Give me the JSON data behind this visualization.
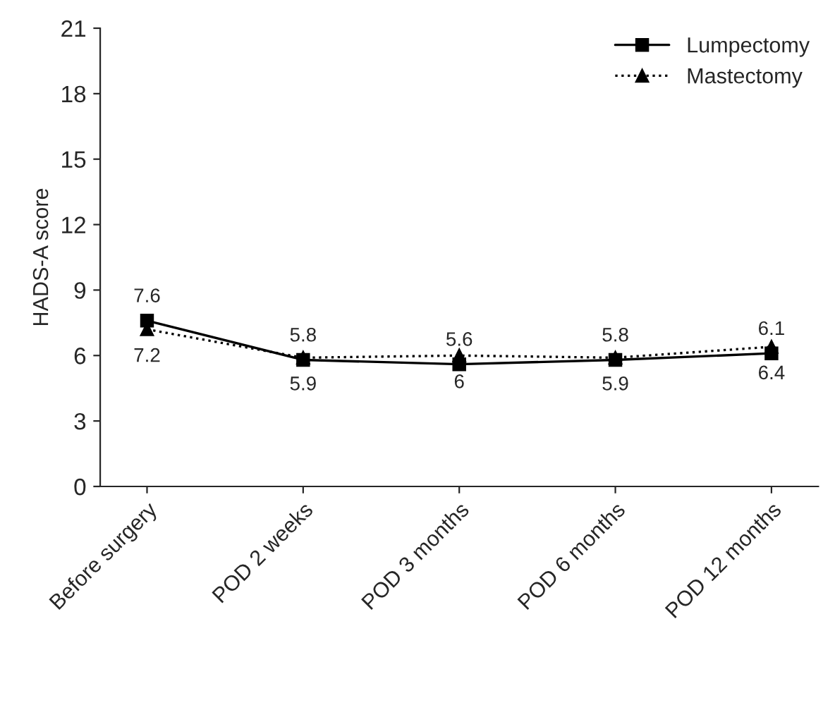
{
  "chart_data": {
    "type": "line",
    "ylabel": "HADS-A score",
    "categories": [
      "Before surgery",
      "POD 2 weeks",
      "POD 3 months",
      "POD 6 months",
      "POD 12 months"
    ],
    "series": [
      {
        "name": "Lumpectomy",
        "color": "#000000",
        "marker": "square",
        "line_style": "solid",
        "values": [
          7.6,
          5.8,
          5.6,
          5.8,
          6.1
        ],
        "value_labels": [
          "7.6",
          "5.8",
          "5.6",
          "5.8",
          "6.1"
        ]
      },
      {
        "name": "Mastectomy",
        "color": "#000000",
        "marker": "triangle",
        "line_style": "dotted",
        "values": [
          7.2,
          5.9,
          6.0,
          5.9,
          6.4
        ],
        "value_labels": [
          "7.2",
          "5.9",
          "6",
          "5.9",
          "6.4"
        ]
      }
    ],
    "ylim": [
      0,
      21
    ],
    "yticks": [
      0,
      3,
      6,
      9,
      12,
      15,
      18,
      21
    ],
    "grid": false,
    "legend": "top right"
  }
}
